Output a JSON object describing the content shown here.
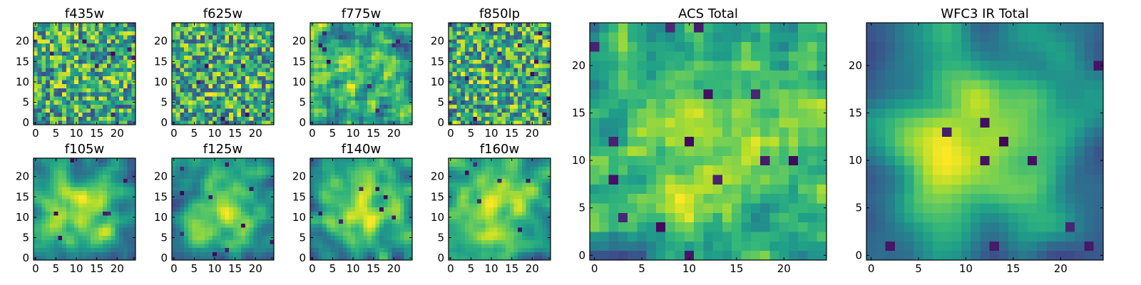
{
  "figure": {
    "colormap": "viridis",
    "colors": {
      "low": "#440154",
      "mid": "#21918c",
      "high": "#fde725",
      "frame": "#000000"
    }
  },
  "chart_data": [
    {
      "type": "heatmap",
      "title": "f435w",
      "grid": 25,
      "xticks": [
        0,
        5,
        10,
        15,
        20
      ],
      "yticks": [
        0,
        5,
        10,
        15,
        20
      ],
      "smooth": 0.1,
      "seed": 11,
      "dark_spots": 7
    },
    {
      "type": "heatmap",
      "title": "f625w",
      "grid": 25,
      "xticks": [
        0,
        5,
        10,
        15,
        20
      ],
      "yticks": [
        0,
        5,
        10,
        15,
        20
      ],
      "smooth": 0.1,
      "seed": 23,
      "dark_spots": 7
    },
    {
      "type": "heatmap",
      "title": "f775w",
      "grid": 25,
      "xticks": [
        0,
        5,
        10,
        15,
        20
      ],
      "yticks": [
        0,
        5,
        10,
        15,
        20
      ],
      "smooth": 0.15,
      "seed": 37,
      "dark_spots": 9
    },
    {
      "type": "heatmap",
      "title": "f850lp",
      "grid": 25,
      "xticks": [
        0,
        5,
        10,
        15,
        20
      ],
      "yticks": [
        0,
        5,
        10,
        15,
        20
      ],
      "smooth": 0.1,
      "seed": 41,
      "dark_spots": 10
    },
    {
      "type": "heatmap",
      "title": "f105w",
      "grid": 25,
      "xticks": [
        0,
        5,
        10,
        15,
        20
      ],
      "yticks": [
        0,
        5,
        10,
        15,
        20
      ],
      "smooth": 0.5,
      "seed": 53,
      "dark_spots": 6
    },
    {
      "type": "heatmap",
      "title": "f125w",
      "grid": 25,
      "xticks": [
        0,
        5,
        10,
        15,
        20
      ],
      "yticks": [
        0,
        5,
        10,
        15,
        20
      ],
      "smooth": 0.5,
      "seed": 67,
      "dark_spots": 10
    },
    {
      "type": "heatmap",
      "title": "f140w",
      "grid": 25,
      "xticks": [
        0,
        5,
        10,
        15,
        20
      ],
      "yticks": [
        0,
        5,
        10,
        15,
        20
      ],
      "smooth": 0.55,
      "seed": 79,
      "dark_spots": 7
    },
    {
      "type": "heatmap",
      "title": "f160w",
      "grid": 25,
      "xticks": [
        0,
        5,
        10,
        15,
        20
      ],
      "yticks": [
        0,
        5,
        10,
        15,
        20
      ],
      "smooth": 0.6,
      "seed": 83,
      "dark_spots": 6
    },
    {
      "type": "heatmap",
      "title": "ACS Total",
      "grid": 25,
      "xticks": [
        0,
        5,
        10,
        15,
        20
      ],
      "yticks": [
        0,
        5,
        10,
        15,
        20
      ],
      "smooth": 0.35,
      "seed": 97,
      "dark_spots": 14
    },
    {
      "type": "heatmap",
      "title": "WFC3 IR Total",
      "grid": 25,
      "xticks": [
        0,
        5,
        10,
        15,
        20
      ],
      "yticks": [
        0,
        5,
        10,
        15,
        20
      ],
      "smooth": 0.75,
      "seed": 101,
      "dark_spots": 10
    }
  ]
}
